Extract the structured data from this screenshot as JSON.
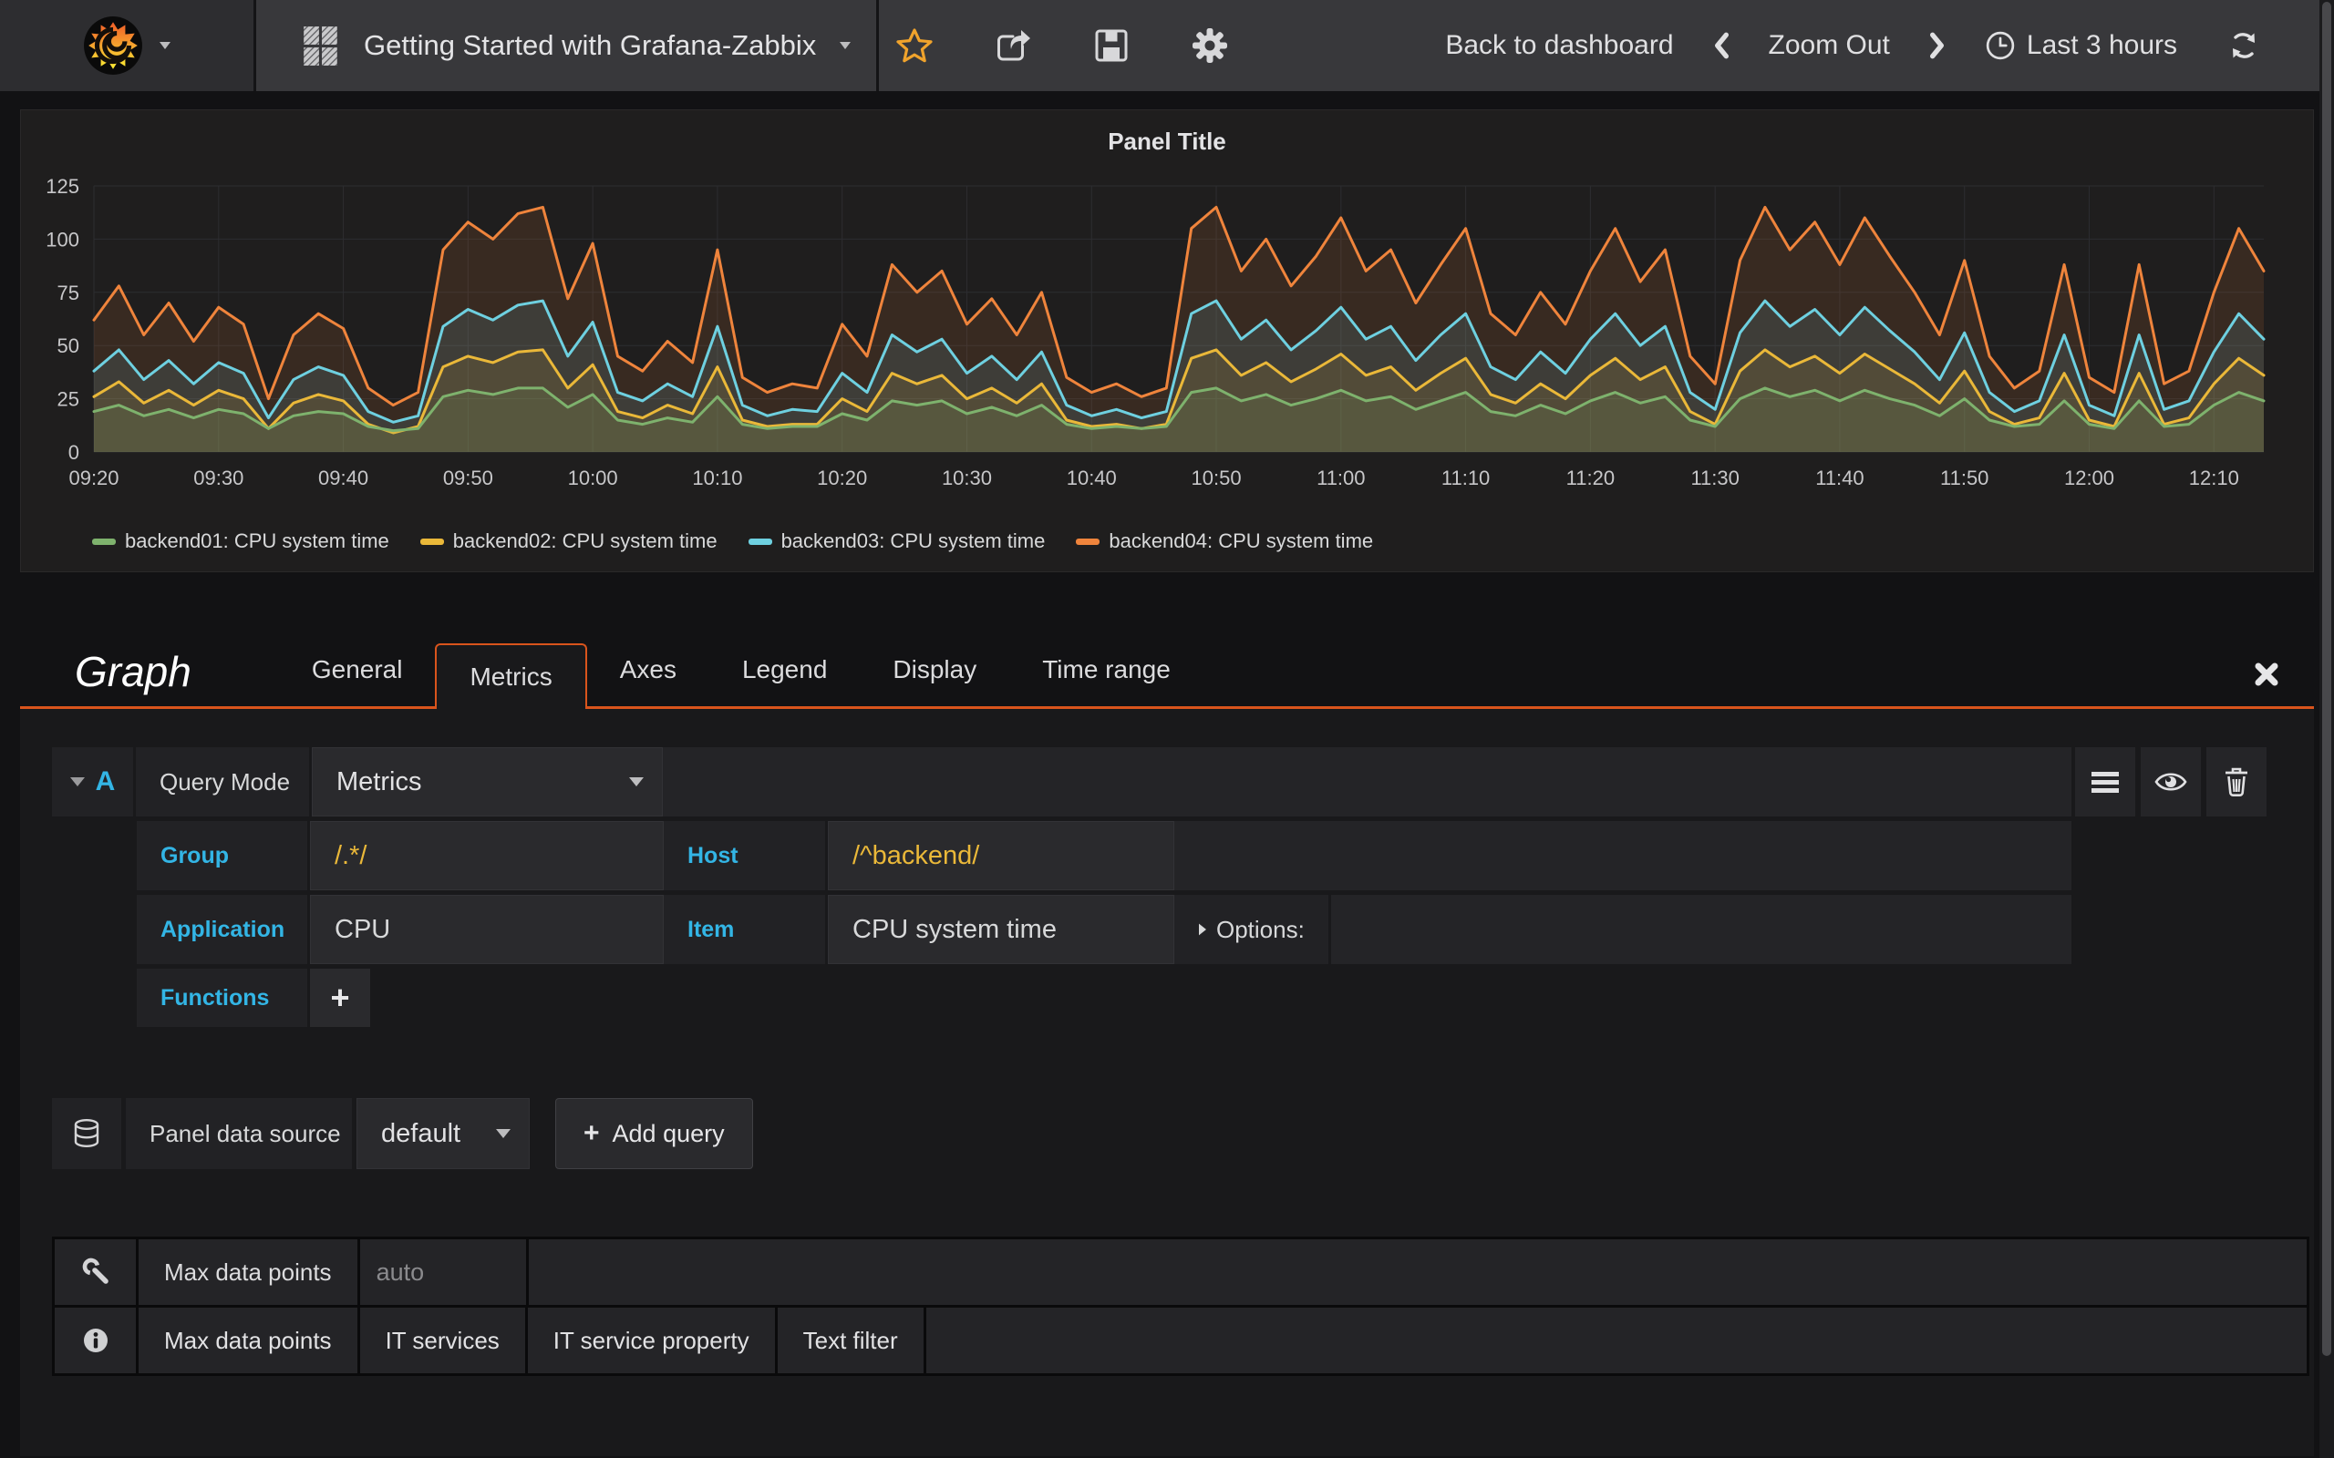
{
  "navbar": {
    "dashboard_title": "Getting Started with Grafana-Zabbix",
    "back_label": "Back to dashboard",
    "zoom_out_label": "Zoom Out",
    "time_range_label": "Last 3 hours"
  },
  "panel": {
    "title": "Panel Title"
  },
  "chart_data": {
    "type": "line",
    "title": "Panel Title",
    "start": "09:20",
    "interval_minutes": 2,
    "x_ticks": [
      "09:20",
      "09:30",
      "09:40",
      "09:50",
      "10:00",
      "10:10",
      "10:20",
      "10:30",
      "10:40",
      "10:50",
      "11:00",
      "11:10",
      "11:20",
      "11:30",
      "11:40",
      "11:50",
      "12:00",
      "12:10"
    ],
    "ylim": [
      0,
      125
    ],
    "y_ticks": [
      0,
      25,
      50,
      75,
      100,
      125
    ],
    "grid": true,
    "legend_position": "bottom",
    "fill_opacity": 0.12,
    "series": [
      {
        "name": "backend01: CPU system time",
        "color": "#7eb26d",
        "values": [
          19,
          22,
          17,
          20,
          16,
          20,
          18,
          11,
          17,
          19,
          18,
          12,
          10,
          11,
          26,
          29,
          27,
          30,
          30,
          21,
          27,
          15,
          13,
          16,
          14,
          26,
          13,
          11,
          12,
          12,
          18,
          15,
          24,
          22,
          24,
          18,
          21,
          17,
          22,
          13,
          11,
          12,
          11,
          12,
          28,
          30,
          24,
          27,
          22,
          25,
          29,
          24,
          26,
          20,
          24,
          28,
          19,
          17,
          22,
          18,
          24,
          28,
          23,
          26,
          15,
          12,
          25,
          30,
          26,
          29,
          24,
          29,
          25,
          22,
          17,
          25,
          15,
          12,
          13,
          24,
          13,
          11,
          24,
          12,
          13,
          22,
          28,
          24
        ]
      },
      {
        "name": "backend02: CPU system time",
        "color": "#eab839",
        "values": [
          26,
          33,
          23,
          29,
          22,
          29,
          25,
          11,
          23,
          27,
          24,
          13,
          9,
          12,
          40,
          45,
          42,
          47,
          48,
          30,
          41,
          19,
          16,
          22,
          18,
          40,
          15,
          12,
          13,
          13,
          25,
          19,
          37,
          32,
          36,
          25,
          30,
          23,
          32,
          15,
          12,
          13,
          11,
          13,
          44,
          48,
          36,
          42,
          33,
          39,
          46,
          36,
          40,
          29,
          37,
          44,
          27,
          23,
          32,
          25,
          36,
          44,
          34,
          40,
          19,
          13,
          38,
          48,
          40,
          45,
          37,
          46,
          39,
          32,
          23,
          38,
          19,
          13,
          16,
          37,
          15,
          12,
          37,
          13,
          16,
          32,
          44,
          36
        ]
      },
      {
        "name": "backend03: CPU system time",
        "color": "#6ed0e0",
        "values": [
          38,
          48,
          34,
          43,
          32,
          42,
          37,
          16,
          34,
          40,
          36,
          19,
          14,
          17,
          59,
          67,
          62,
          69,
          71,
          45,
          61,
          28,
          24,
          32,
          26,
          59,
          22,
          17,
          20,
          19,
          37,
          28,
          55,
          47,
          53,
          37,
          45,
          34,
          47,
          22,
          17,
          20,
          16,
          19,
          65,
          71,
          53,
          62,
          48,
          57,
          68,
          53,
          59,
          43,
          55,
          65,
          40,
          34,
          47,
          37,
          53,
          65,
          50,
          59,
          28,
          20,
          56,
          71,
          59,
          67,
          55,
          68,
          57,
          47,
          34,
          56,
          28,
          19,
          24,
          55,
          22,
          17,
          55,
          20,
          24,
          47,
          65,
          53
        ]
      },
      {
        "name": "backend04: CPU system time",
        "color": "#ef843c",
        "values": [
          62,
          78,
          55,
          70,
          52,
          68,
          60,
          25,
          55,
          65,
          58,
          30,
          22,
          28,
          95,
          108,
          100,
          112,
          115,
          72,
          98,
          45,
          38,
          52,
          42,
          95,
          35,
          28,
          32,
          30,
          60,
          45,
          88,
          75,
          85,
          60,
          72,
          55,
          75,
          35,
          28,
          32,
          26,
          30,
          105,
          115,
          85,
          100,
          78,
          92,
          110,
          85,
          95,
          70,
          88,
          105,
          65,
          55,
          75,
          60,
          85,
          105,
          80,
          95,
          45,
          32,
          90,
          115,
          95,
          108,
          88,
          110,
          92,
          75,
          55,
          90,
          45,
          30,
          38,
          88,
          35,
          28,
          88,
          32,
          38,
          75,
          105,
          85
        ]
      }
    ]
  },
  "editor": {
    "panel_type": "Graph",
    "active_tab": "Metrics",
    "tabs": [
      {
        "label": "General"
      },
      {
        "label": "Metrics"
      },
      {
        "label": "Axes"
      },
      {
        "label": "Legend"
      },
      {
        "label": "Display"
      },
      {
        "label": "Time range"
      }
    ],
    "query": {
      "ref_id": "A",
      "mode_label": "Query Mode",
      "mode_value": "Metrics",
      "group_label": "Group",
      "group_value": "/.*/",
      "host_label": "Host",
      "host_value": "/^backend/",
      "application_label": "Application",
      "application_value": "CPU",
      "item_label": "Item",
      "item_value": "CPU system time",
      "options_label": "Options:",
      "functions_label": "Functions"
    },
    "datasource": {
      "label": "Panel data source",
      "value": "default",
      "add_query_label": "Add query"
    },
    "settings": {
      "max_data_points_label": "Max data points",
      "max_data_points_placeholder": "auto",
      "info_tabs": [
        "Max data points",
        "IT services",
        "IT service property",
        "Text filter"
      ]
    }
  },
  "colors": {
    "accent": "#d9541c",
    "label_blue": "#33b5e5",
    "value_yellow": "#eab839",
    "star_orange": "#f0a32c",
    "series_green": "#7eb26d",
    "series_yellow": "#eab839",
    "series_cyan": "#6ed0e0",
    "series_orange": "#ef843c"
  }
}
